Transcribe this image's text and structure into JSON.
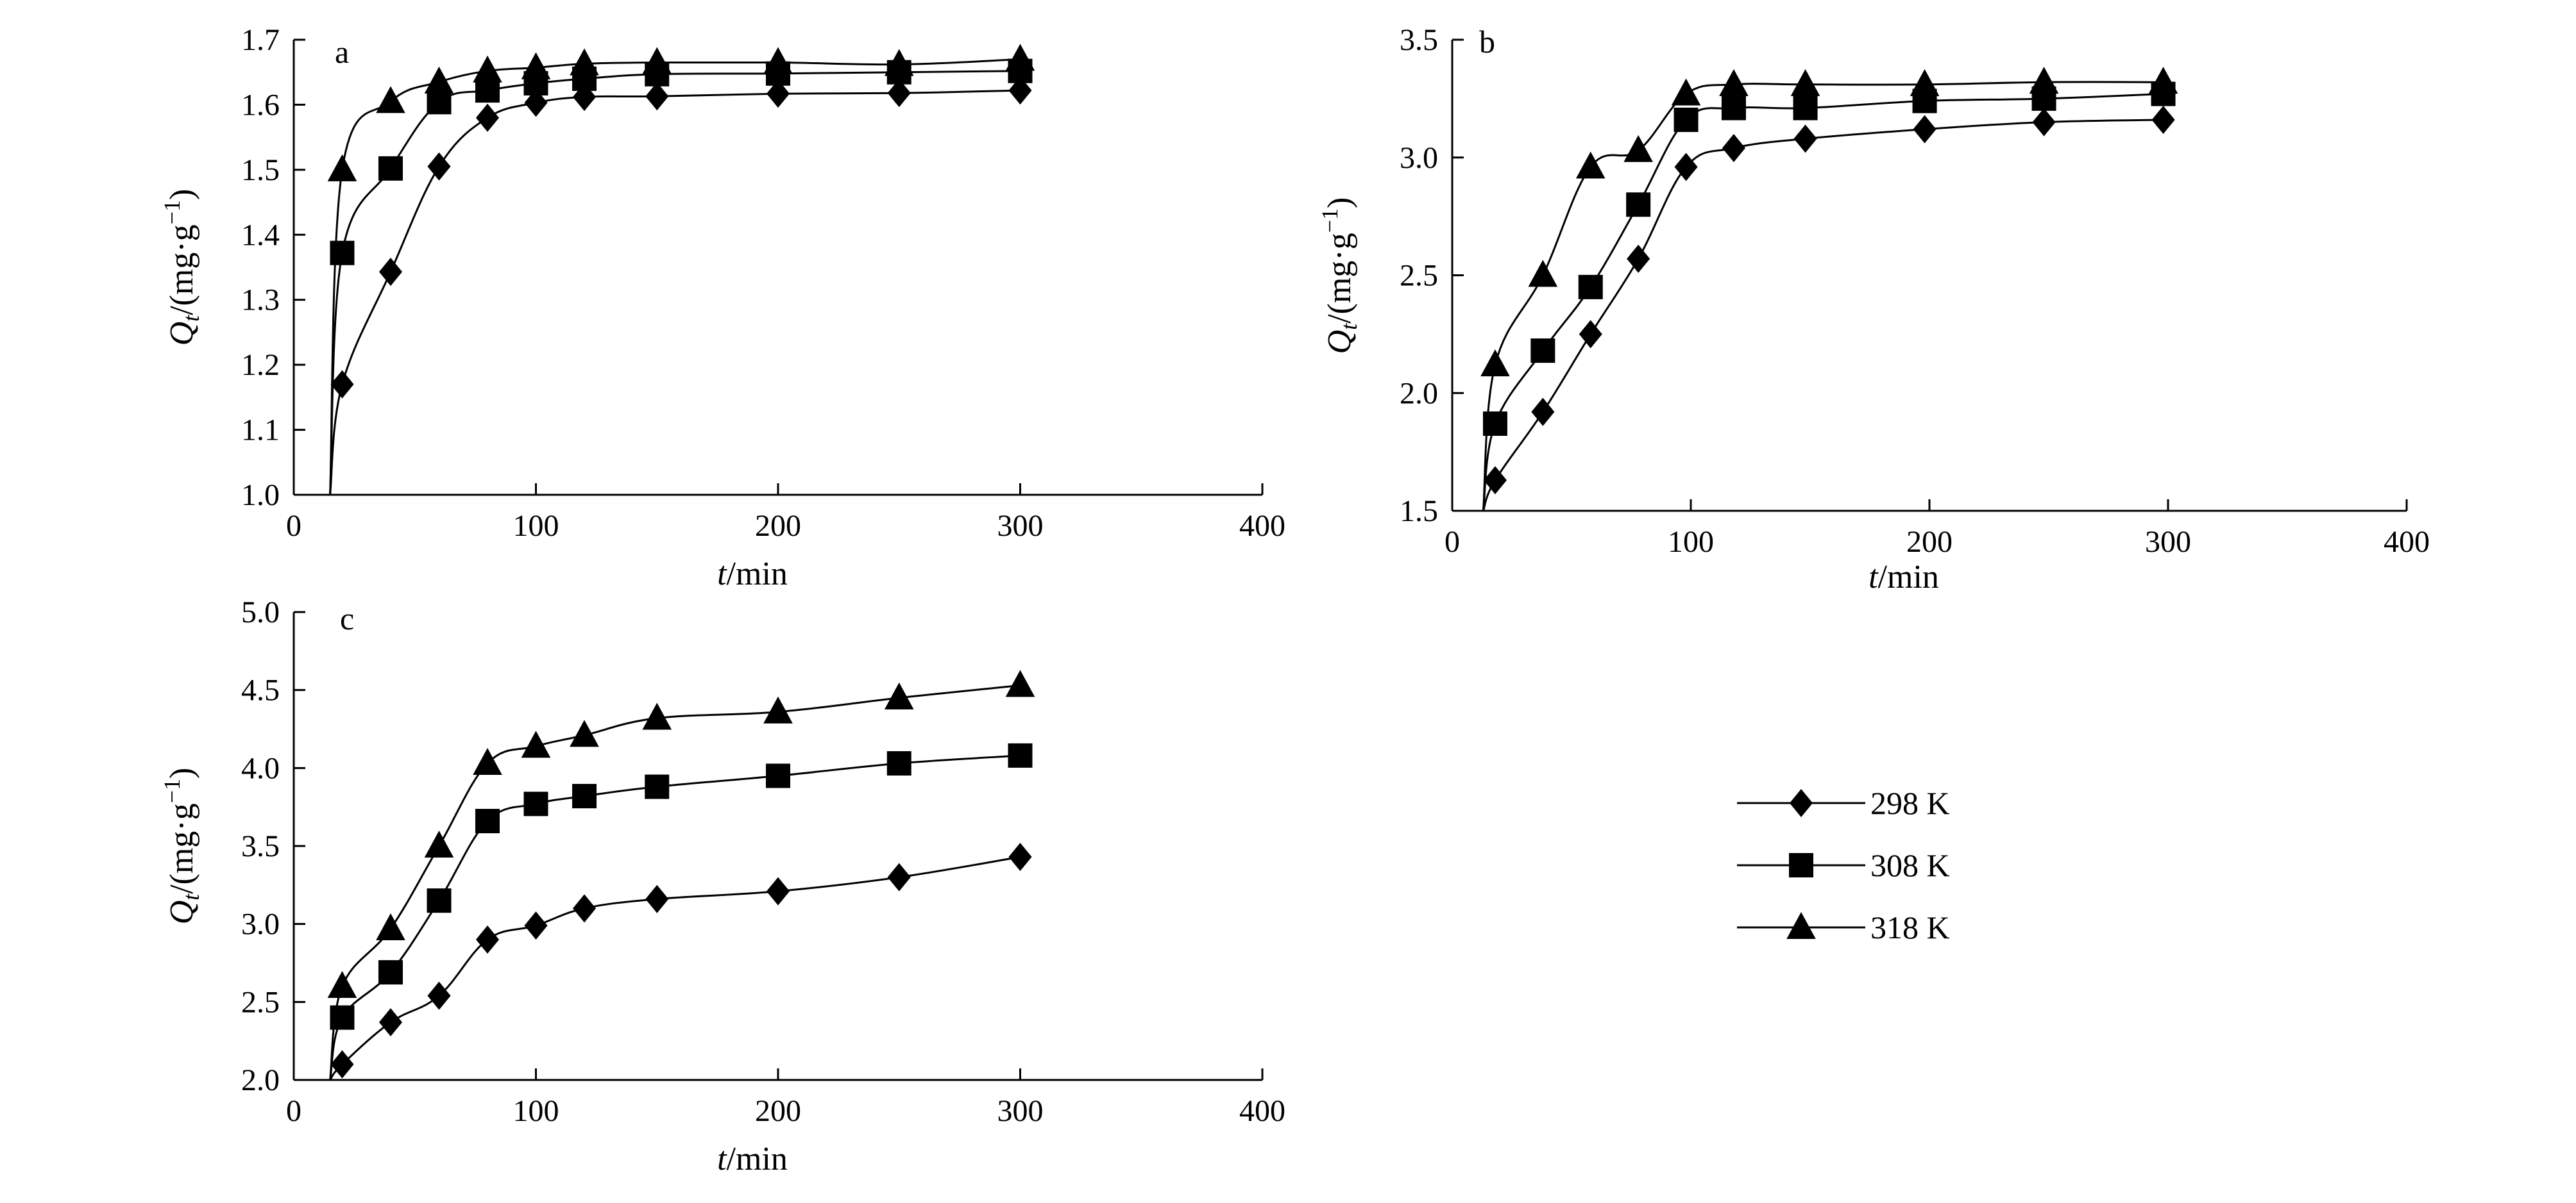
{
  "figure": {
    "legend": {
      "placement": "right-middle",
      "entries": [
        {
          "label": "298 K",
          "marker": "diamond"
        },
        {
          "label": "308 K",
          "marker": "square"
        },
        {
          "label": "318 K",
          "marker": "triangle"
        }
      ]
    }
  },
  "chart_data": [
    {
      "type": "line",
      "panel": "a",
      "xlabel_italic": "t",
      "xlabel_unit": "/min",
      "ylabel_italic": "Q",
      "ylabel_sub": "t",
      "ylabel_unit": "/(mg·g",
      "ylabel_sup": "−1",
      "ylabel_close": ")",
      "xlim": [
        0,
        400
      ],
      "ylim": [
        1.0,
        1.7
      ],
      "xticks": [
        0,
        100,
        200,
        300,
        400
      ],
      "xtick_labels": [
        "0",
        "100",
        "200",
        "300",
        "400"
      ],
      "yticks": [
        1.0,
        1.1,
        1.2,
        1.3,
        1.4,
        1.5,
        1.6,
        1.7
      ],
      "ytick_labels": [
        "1.0",
        "1.1",
        "1.2",
        "1.3",
        "1.4",
        "1.5",
        "1.6",
        "1.7"
      ],
      "grid": false,
      "series": [
        {
          "name": "298 K",
          "marker": "diamond",
          "x": [
            20,
            40,
            60,
            80,
            100,
            120,
            150,
            200,
            250,
            300
          ],
          "y": [
            1.17,
            1.343,
            1.505,
            1.58,
            1.603,
            1.612,
            1.613,
            1.617,
            1.618,
            1.622
          ]
        },
        {
          "name": "308 K",
          "marker": "square",
          "x": [
            20,
            40,
            60,
            80,
            100,
            120,
            150,
            200,
            250,
            300
          ],
          "y": [
            1.372,
            1.502,
            1.604,
            1.622,
            1.633,
            1.64,
            1.647,
            1.648,
            1.65,
            1.652
          ]
        },
        {
          "name": "318 K",
          "marker": "triangle",
          "x": [
            20,
            40,
            60,
            80,
            100,
            120,
            150,
            200,
            250,
            300
          ],
          "y": [
            1.5,
            1.605,
            1.635,
            1.652,
            1.657,
            1.663,
            1.665,
            1.665,
            1.662,
            1.67
          ]
        }
      ]
    },
    {
      "type": "line",
      "panel": "b",
      "xlabel_italic": "t",
      "xlabel_unit": "/min",
      "ylabel_italic": "Q",
      "ylabel_sub": "t",
      "ylabel_unit": "/(mg·g",
      "ylabel_sup": "−1",
      "ylabel_close": ")",
      "xlim": [
        0,
        400
      ],
      "ylim": [
        1.5,
        3.5
      ],
      "xticks": [
        0,
        100,
        200,
        300,
        400
      ],
      "xtick_labels": [
        "0",
        "100",
        "200",
        "300",
        "400"
      ],
      "yticks": [
        1.5,
        2.0,
        2.5,
        3.0,
        3.5
      ],
      "ytick_labels": [
        "1.5",
        "2.0",
        "2.5",
        "3.0",
        "3.5"
      ],
      "grid": false,
      "series": [
        {
          "name": "298 K",
          "marker": "diamond",
          "x": [
            18,
            38,
            58,
            78,
            98,
            118,
            148,
            198,
            248,
            298
          ],
          "y": [
            1.63,
            1.92,
            2.25,
            2.57,
            2.96,
            3.04,
            3.08,
            3.12,
            3.15,
            3.16
          ]
        },
        {
          "name": "308 K",
          "marker": "square",
          "x": [
            18,
            38,
            58,
            78,
            98,
            118,
            148,
            198,
            248,
            298
          ],
          "y": [
            1.87,
            2.18,
            2.45,
            2.8,
            3.16,
            3.21,
            3.21,
            3.24,
            3.25,
            3.27
          ]
        },
        {
          "name": "318 K",
          "marker": "triangle",
          "x": [
            18,
            38,
            58,
            78,
            98,
            118,
            148,
            198,
            248,
            298
          ],
          "y": [
            2.12,
            2.5,
            2.96,
            3.03,
            3.27,
            3.31,
            3.31,
            3.31,
            3.32,
            3.32
          ]
        }
      ]
    },
    {
      "type": "line",
      "panel": "c",
      "xlabel_italic": "t",
      "xlabel_unit": "/min",
      "ylabel_italic": "Q",
      "ylabel_sub": "t",
      "ylabel_unit": "/(mg·g",
      "ylabel_sup": "−1",
      "ylabel_close": ")",
      "xlim": [
        0,
        400
      ],
      "ylim": [
        2.0,
        5.0
      ],
      "xticks": [
        0,
        100,
        200,
        300,
        400
      ],
      "xtick_labels": [
        "0",
        "100",
        "200",
        "300",
        "400"
      ],
      "yticks": [
        2.0,
        2.5,
        3.0,
        3.5,
        4.0,
        4.5,
        5.0
      ],
      "ytick_labels": [
        "2.0",
        "2.5",
        "3.0",
        "3.5",
        "4.0",
        "4.5",
        "5.0"
      ],
      "grid": false,
      "series": [
        {
          "name": "298 K",
          "marker": "diamond",
          "x": [
            20,
            40,
            60,
            80,
            100,
            120,
            150,
            200,
            250,
            300
          ],
          "y": [
            2.1,
            2.37,
            2.54,
            2.9,
            2.99,
            3.1,
            3.16,
            3.21,
            3.3,
            3.43
          ]
        },
        {
          "name": "308 K",
          "marker": "square",
          "x": [
            20,
            40,
            60,
            80,
            100,
            120,
            150,
            200,
            250,
            300
          ],
          "y": [
            2.4,
            2.69,
            3.15,
            3.66,
            3.77,
            3.82,
            3.88,
            3.95,
            4.03,
            4.08
          ]
        },
        {
          "name": "318 K",
          "marker": "triangle",
          "x": [
            20,
            40,
            60,
            80,
            100,
            120,
            150,
            200,
            250,
            300
          ],
          "y": [
            2.6,
            2.97,
            3.5,
            4.03,
            4.14,
            4.21,
            4.32,
            4.36,
            4.45,
            4.53
          ]
        }
      ]
    }
  ]
}
